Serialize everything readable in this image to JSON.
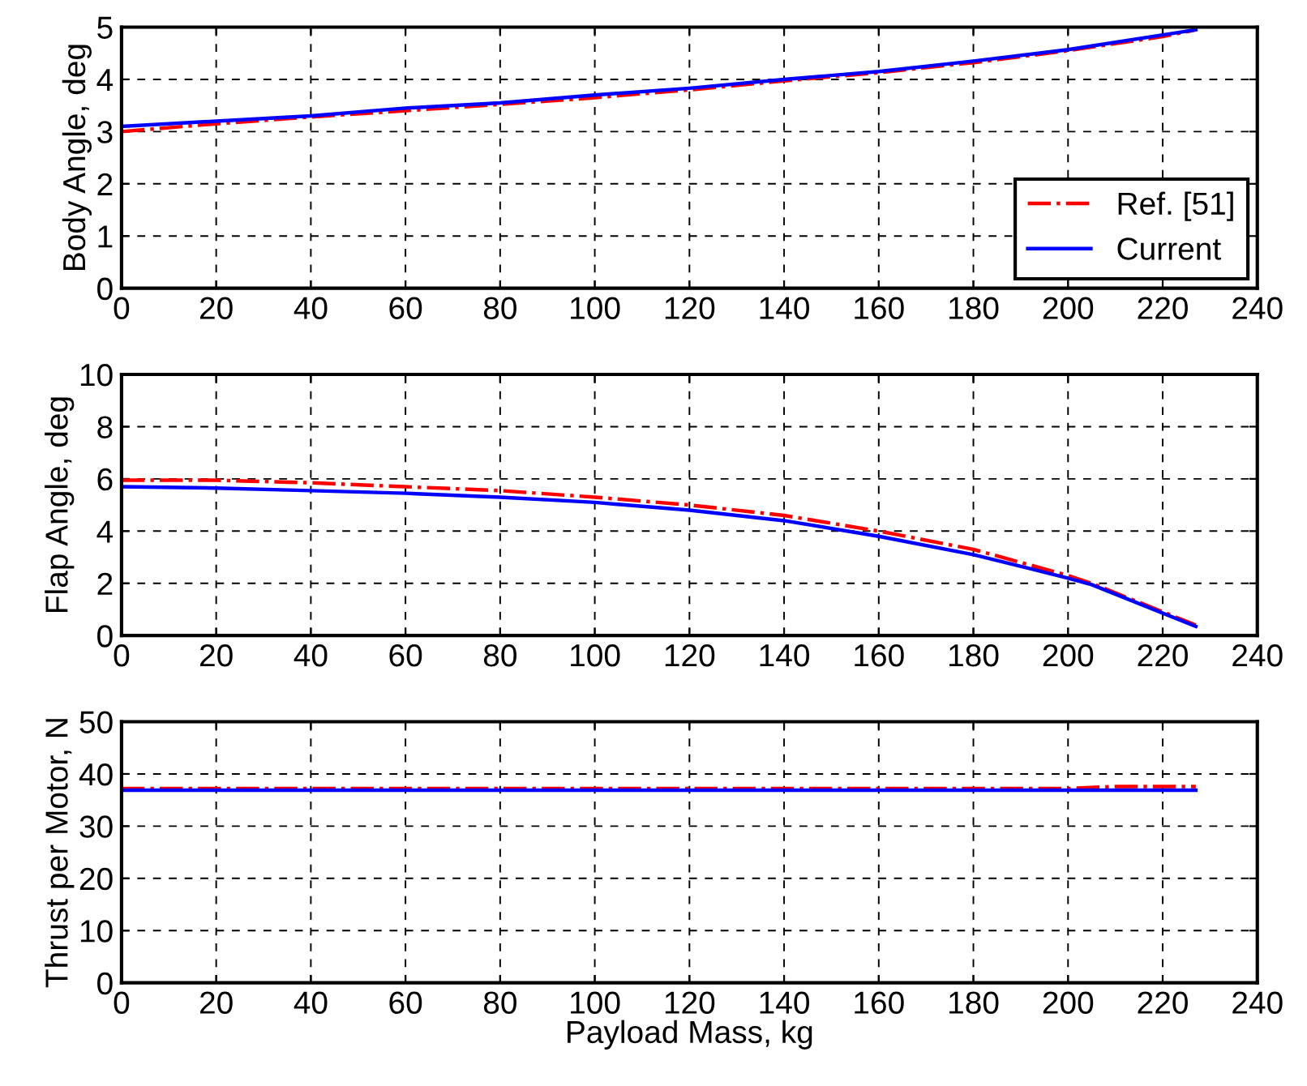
{
  "chart_data": [
    {
      "type": "line",
      "ylabel": "Body Angle, deg",
      "xlim": [
        0,
        240
      ],
      "xticks": [
        0,
        20,
        40,
        60,
        80,
        100,
        120,
        140,
        160,
        180,
        200,
        220,
        240
      ],
      "ylim": [
        0,
        5
      ],
      "yticks": [
        0,
        1,
        2,
        3,
        4,
        5
      ],
      "grid": true,
      "legend": "bottom right",
      "series": [
        {
          "name": "Ref. [51]",
          "color": "#ff0000",
          "line_style": "dashdot",
          "x": [
            0,
            20,
            40,
            60,
            80,
            100,
            120,
            140,
            160,
            180,
            200,
            220,
            227
          ],
          "values": [
            3.0,
            3.15,
            3.28,
            3.4,
            3.52,
            3.65,
            3.8,
            3.97,
            4.13,
            4.32,
            4.55,
            4.82,
            4.95
          ]
        },
        {
          "name": "Current",
          "color": "#0000ff",
          "line_style": "solid",
          "x": [
            0,
            20,
            40,
            60,
            80,
            100,
            120,
            140,
            160,
            180,
            200,
            220,
            227
          ],
          "values": [
            3.1,
            3.2,
            3.3,
            3.45,
            3.55,
            3.7,
            3.83,
            4.0,
            4.15,
            4.35,
            4.57,
            4.85,
            4.95
          ]
        }
      ]
    },
    {
      "type": "line",
      "ylabel": "Flap Angle, deg",
      "xlim": [
        0,
        240
      ],
      "xticks": [
        0,
        20,
        40,
        60,
        80,
        100,
        120,
        140,
        160,
        180,
        200,
        220,
        240
      ],
      "ylim": [
        0,
        10
      ],
      "yticks": [
        0,
        2,
        4,
        6,
        8,
        10
      ],
      "grid": true,
      "series": [
        {
          "color": "#ff0000",
          "line_style": "dashdot",
          "x": [
            0,
            20,
            40,
            60,
            80,
            100,
            120,
            140,
            160,
            180,
            200,
            205,
            227
          ],
          "values": [
            5.95,
            5.95,
            5.85,
            5.7,
            5.55,
            5.3,
            5.0,
            4.6,
            4.0,
            3.3,
            2.3,
            2.0,
            0.4
          ]
        },
        {
          "color": "#0000ff",
          "line_style": "solid",
          "x": [
            0,
            20,
            40,
            60,
            80,
            100,
            120,
            140,
            160,
            180,
            200,
            205,
            227
          ],
          "values": [
            5.7,
            5.65,
            5.55,
            5.45,
            5.3,
            5.1,
            4.8,
            4.4,
            3.8,
            3.1,
            2.2,
            1.95,
            0.35
          ]
        }
      ]
    },
    {
      "type": "line",
      "xlabel": "Payload Mass, kg",
      "ylabel": "Thrust per Motor, N",
      "xlim": [
        0,
        240
      ],
      "xticks": [
        0,
        20,
        40,
        60,
        80,
        100,
        120,
        140,
        160,
        180,
        200,
        220,
        240
      ],
      "ylim": [
        0,
        50
      ],
      "yticks": [
        0,
        10,
        20,
        30,
        40,
        50
      ],
      "grid": true,
      "series": [
        {
          "color": "#ff0000",
          "line_style": "dashdot",
          "x": [
            0,
            100,
            200,
            210,
            227
          ],
          "values": [
            37.2,
            37.2,
            37.2,
            37.6,
            37.6
          ]
        },
        {
          "color": "#0000ff",
          "line_style": "solid",
          "x": [
            0,
            100,
            227
          ],
          "values": [
            36.9,
            36.9,
            36.9
          ]
        }
      ]
    }
  ]
}
